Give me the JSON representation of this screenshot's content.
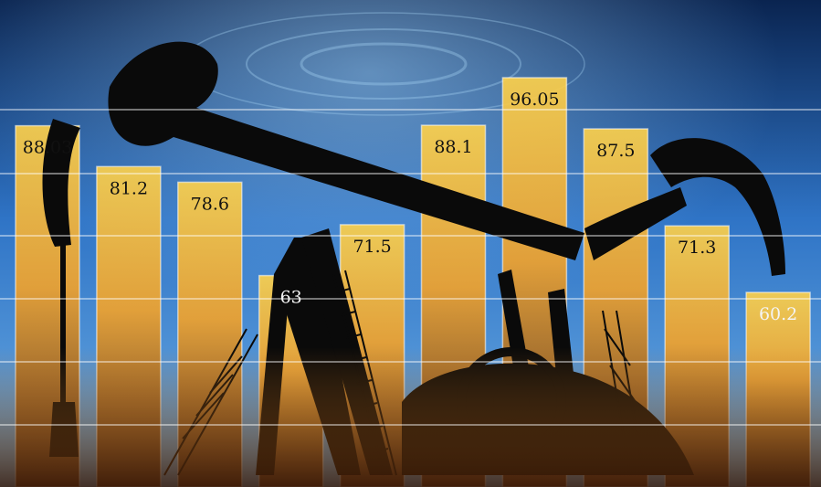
{
  "chart_data": {
    "type": "bar",
    "categories": [
      "",
      "",
      "",
      "",
      "",
      "",
      "",
      "",
      "",
      ""
    ],
    "values": [
      88.03,
      81.2,
      78.6,
      63,
      71.5,
      88.1,
      96.05,
      87.5,
      71.3,
      60.2
    ],
    "value_labels": [
      "88.03",
      "81.2",
      "78.6",
      "63",
      "71.5",
      "88.1",
      "96.05",
      "87.5",
      "71.3",
      "60.2"
    ],
    "title": "",
    "xlabel": "",
    "ylabel": "",
    "grid": true,
    "legend": "none"
  },
  "colors": {
    "sky_top": "#0a2450",
    "sky_mid": "#2f74c6",
    "sky_light": "#6fb0e6",
    "bar_top": "#ffd24a",
    "bar_mid": "#f2a22a",
    "bar_bottom": "#5a2a0c",
    "silhouette": "#0a0a0a",
    "gridline": "#ffffff"
  },
  "background": {
    "subject": "oil-pumpjack-silhouette"
  }
}
